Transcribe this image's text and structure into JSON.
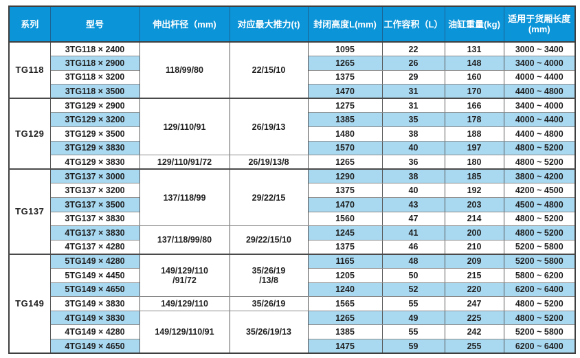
{
  "colors": {
    "header_bg": "#0b94d8",
    "row_alt_bg": "#a9d9f1",
    "row_bg": "#ffffff",
    "grid_light": "#8a8a8a",
    "grid_dark": "#4a4a4a",
    "header_text": "#ffffff",
    "cell_text": "#1f1f1f"
  },
  "chart_data": {
    "type": "table",
    "headers": [
      "系列",
      "型号",
      "伸出杆径（mm)",
      "对应最大推力(t)",
      "封闭高度L(mm)",
      "工作容积（L）",
      "油缸重量(kg)",
      "适用于货厢长度(mm)"
    ],
    "groups": [
      {
        "series": "TG118",
        "merged": [
          {
            "rod": "118/99/80",
            "thrust": "22/15/10",
            "rows": 4
          }
        ],
        "rows": [
          {
            "model": "3TG118 × 2400",
            "closed_height": "1095",
            "working_volume": "22",
            "cylinder_weight": "131",
            "box_length": "3000 ~ 3400"
          },
          {
            "model": "3TG118 × 2900",
            "closed_height": "1265",
            "working_volume": "26",
            "cylinder_weight": "148",
            "box_length": "3400 ~ 4000"
          },
          {
            "model": "3TG118 × 3200",
            "closed_height": "1375",
            "working_volume": "29",
            "cylinder_weight": "160",
            "box_length": "4000 ~ 4400"
          },
          {
            "model": "3TG118 × 3500",
            "closed_height": "1470",
            "working_volume": "31",
            "cylinder_weight": "170",
            "box_length": "4400 ~ 4800"
          }
        ]
      },
      {
        "series": "TG129",
        "merged": [
          {
            "rod": "129/110/91",
            "thrust": "26/19/13",
            "rows": 4
          },
          {
            "rod": "129/110/91/72",
            "thrust": "26/19/13/8",
            "rows": 1
          }
        ],
        "rows": [
          {
            "model": "3TG129 × 2900",
            "closed_height": "1275",
            "working_volume": "31",
            "cylinder_weight": "166",
            "box_length": "3400 ~ 4000"
          },
          {
            "model": "3TG129 × 3200",
            "closed_height": "1385",
            "working_volume": "35",
            "cylinder_weight": "178",
            "box_length": "4000 ~ 4400"
          },
          {
            "model": "3TG129 × 3500",
            "closed_height": "1480",
            "working_volume": "38",
            "cylinder_weight": "188",
            "box_length": "4400 ~ 4800"
          },
          {
            "model": "3TG129 × 3830",
            "closed_height": "1570",
            "working_volume": "40",
            "cylinder_weight": "197",
            "box_length": "4800 ~ 5200"
          },
          {
            "model": "4TG129 × 3830",
            "closed_height": "1265",
            "working_volume": "36",
            "cylinder_weight": "180",
            "box_length": "4800 ~ 5200"
          }
        ]
      },
      {
        "series": "TG137",
        "merged": [
          {
            "rod": "137/118/99",
            "thrust": "29/22/15",
            "rows": 4
          },
          {
            "rod": "137/118/99/80",
            "thrust": "29/22/15/10",
            "rows": 2
          }
        ],
        "rows": [
          {
            "model": "3TG137 × 3000",
            "closed_height": "1290",
            "working_volume": "38",
            "cylinder_weight": "185",
            "box_length": "3800 ~ 4200"
          },
          {
            "model": "3TG137 × 3200",
            "closed_height": "1375",
            "working_volume": "40",
            "cylinder_weight": "192",
            "box_length": "4200 ~ 4500"
          },
          {
            "model": "3TG137 × 3500",
            "closed_height": "1470",
            "working_volume": "43",
            "cylinder_weight": "203",
            "box_length": "4500 ~ 4800"
          },
          {
            "model": "3TG137 × 3830",
            "closed_height": "1560",
            "working_volume": "47",
            "cylinder_weight": "214",
            "box_length": "4800 ~ 5200"
          },
          {
            "model": "4TG137 × 3830",
            "closed_height": "1245",
            "working_volume": "41",
            "cylinder_weight": "200",
            "box_length": "4800 ~ 5200"
          },
          {
            "model": "4TG137 × 4280",
            "closed_height": "1375",
            "working_volume": "46",
            "cylinder_weight": "210",
            "box_length": "5200 ~ 5800"
          }
        ]
      },
      {
        "series": "TG149",
        "merged": [
          {
            "rod": "149/129/110\n/91/72",
            "thrust": "35/26/19\n/13/8",
            "rows": 3
          },
          {
            "rod": "149/129/110",
            "thrust": "35/26/19",
            "rows": 1
          },
          {
            "rod": "149/129/110/91",
            "thrust": "35/26/19/13",
            "rows": 3
          }
        ],
        "rows": [
          {
            "model": "5TG149 × 4280",
            "closed_height": "1165",
            "working_volume": "48",
            "cylinder_weight": "209",
            "box_length": "5200 ~ 5800"
          },
          {
            "model": "5TG149 × 4450",
            "closed_height": "1205",
            "working_volume": "50",
            "cylinder_weight": "215",
            "box_length": "5800 ~ 6200"
          },
          {
            "model": "5TG149 × 4650",
            "closed_height": "1240",
            "working_volume": "52",
            "cylinder_weight": "220",
            "box_length": "6200 ~ 6400"
          },
          {
            "model": "3TG149 × 3830",
            "closed_height": "1565",
            "working_volume": "55",
            "cylinder_weight": "247",
            "box_length": "4800 ~ 5200"
          },
          {
            "model": "4TG149 × 3830",
            "closed_height": "1265",
            "working_volume": "49",
            "cylinder_weight": "225",
            "box_length": "4800 ~ 5200"
          },
          {
            "model": "4TG149 × 4280",
            "closed_height": "1385",
            "working_volume": "55",
            "cylinder_weight": "242",
            "box_length": "5200 ~ 5800"
          },
          {
            "model": "4TG149 × 4650",
            "closed_height": "1475",
            "working_volume": "59",
            "cylinder_weight": "255",
            "box_length": "6200 ~ 6400"
          }
        ]
      }
    ]
  }
}
